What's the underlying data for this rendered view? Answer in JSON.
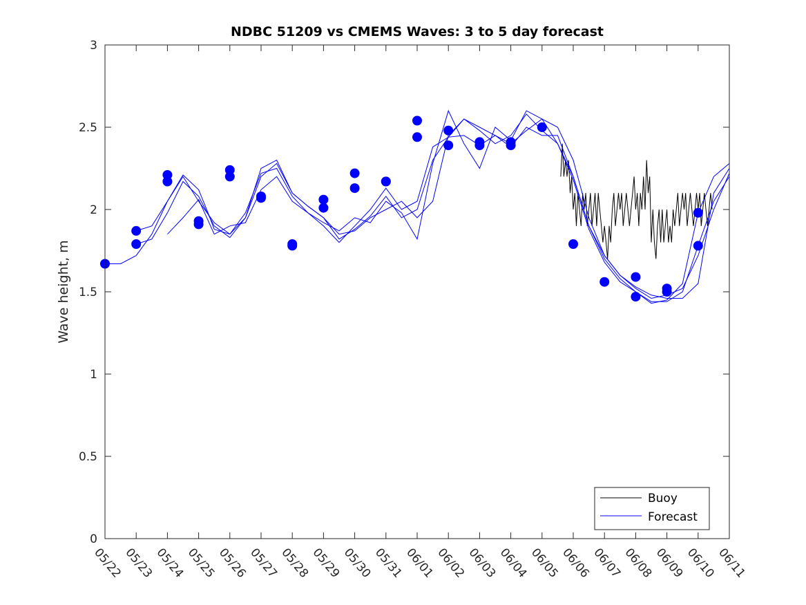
{
  "chart_data": {
    "type": "line",
    "title": "NDBC 51209 vs CMEMS Waves: 3 to 5 day forecast",
    "xlabel": "",
    "ylabel": "Wave height, m",
    "ylim": [
      0,
      3
    ],
    "yticks": [
      "0",
      "0.5",
      "1",
      "1.5",
      "2",
      "2.5",
      "3"
    ],
    "xlim": [
      "2024-05-22",
      "2024-06-11"
    ],
    "xtick_labels": [
      "05/22",
      "05/23",
      "05/24",
      "05/25",
      "05/26",
      "05/27",
      "05/28",
      "05/29",
      "05/30",
      "05/31",
      "06/01",
      "06/02",
      "06/03",
      "06/04",
      "06/05",
      "06/06",
      "06/07",
      "06/08",
      "06/09",
      "06/10",
      "06/11"
    ],
    "grid": false,
    "legend": {
      "placement": "bottom-right",
      "entries": [
        "Buoy",
        "Forecast"
      ]
    },
    "colors": {
      "buoy": "#000000",
      "forecast": "#0000ff"
    },
    "series": [
      {
        "name": "Buoy",
        "x": [
          14.6,
          14.65,
          14.7,
          14.75,
          14.8,
          14.85,
          14.9,
          14.95,
          15.0,
          15.05,
          15.1,
          15.15,
          15.2,
          15.25,
          15.3,
          15.35,
          15.4,
          15.45,
          15.5,
          15.55,
          15.6,
          15.65,
          15.7,
          15.75,
          15.8,
          15.85,
          15.9,
          15.95,
          16.0,
          16.05,
          16.1,
          16.15,
          16.2,
          16.25,
          16.3,
          16.35,
          16.4,
          16.45,
          16.5,
          16.55,
          16.6,
          16.65,
          16.7,
          16.75,
          16.8,
          16.85,
          16.9,
          16.95,
          17.0,
          17.05,
          17.1,
          17.15,
          17.2,
          17.25,
          17.3,
          17.35,
          17.4,
          17.45,
          17.5,
          17.55,
          17.6,
          17.65,
          17.7,
          17.75,
          17.8,
          17.85,
          17.9,
          17.95,
          18.0,
          18.05,
          18.1,
          18.15,
          18.2,
          18.25,
          18.3,
          18.35,
          18.4,
          18.45,
          18.5,
          18.55,
          18.6,
          18.65,
          18.7,
          18.75,
          18.8,
          18.85,
          18.9,
          18.95,
          19.0,
          19.05,
          19.1,
          19.15,
          19.2,
          19.25,
          19.3,
          19.35,
          19.4,
          19.45
        ],
        "values": [
          2.2,
          2.4,
          2.2,
          2.3,
          2.2,
          2.3,
          2.1,
          2.2,
          2.0,
          2.1,
          1.9,
          2.1,
          2.0,
          1.9,
          2.1,
          2.0,
          2.1,
          1.9,
          2.0,
          2.1,
          1.9,
          2.0,
          2.1,
          1.9,
          2.1,
          2.0,
          1.9,
          1.8,
          1.9,
          1.8,
          1.7,
          1.9,
          1.8,
          2.0,
          2.1,
          1.9,
          2.0,
          2.1,
          2.0,
          2.1,
          1.9,
          2.0,
          2.1,
          2.0,
          1.9,
          2.0,
          2.1,
          2.2,
          2.0,
          2.1,
          1.9,
          2.1,
          2.0,
          2.2,
          2.0,
          2.3,
          2.1,
          2.2,
          1.8,
          2.0,
          1.8,
          1.7,
          1.9,
          2.0,
          1.8,
          2.0,
          1.8,
          1.9,
          2.0,
          1.8,
          1.9,
          1.8,
          2.0,
          1.9,
          2.0,
          2.1,
          1.9,
          2.0,
          2.1,
          2.0,
          2.1,
          1.9,
          2.0,
          2.1,
          2.0,
          1.9,
          2.0,
          2.1,
          2.0,
          2.1,
          1.9,
          2.0,
          2.1,
          2.0,
          1.9,
          2.0,
          2.1,
          2.0
        ]
      },
      {
        "name": "Forecast",
        "x": [
          0.0,
          0.5,
          1.0,
          1.5,
          2.0,
          2.5,
          3.0,
          3.3,
          3.5,
          4.0,
          4.5,
          5.0,
          5.5,
          6.0,
          6.5,
          7.0,
          7.5,
          8.0,
          8.5,
          9.0,
          9.5,
          10.0,
          10.5,
          11.0,
          11.5,
          12.0,
          12.5,
          13.0,
          13.5,
          14.0,
          14.5,
          15.0,
          15.5,
          16.0,
          16.5,
          17.0,
          17.5,
          18.0,
          18.5,
          19.0,
          19.5,
          20.0
        ],
        "values": [
          1.67,
          1.67,
          1.72,
          1.85,
          2.05,
          2.21,
          2.12,
          1.98,
          1.88,
          1.85,
          1.95,
          2.25,
          2.3,
          2.1,
          2.02,
          1.95,
          1.85,
          1.87,
          1.95,
          2.0,
          2.05,
          1.95,
          2.05,
          2.45,
          2.55,
          2.5,
          2.45,
          2.4,
          2.48,
          2.55,
          2.5,
          2.3,
          1.95,
          1.72,
          1.6,
          1.53,
          1.48,
          1.46,
          1.46,
          1.55,
          2.1,
          2.25
        ]
      },
      {
        "name": "",
        "x": [
          1.0,
          1.5,
          2.0,
          2.5,
          3.0,
          3.5,
          4.0,
          4.5,
          5.0,
          5.5,
          6.0,
          6.5,
          7.0,
          7.5,
          8.0,
          8.5,
          9.0,
          9.5,
          10.0,
          10.5,
          11.0,
          11.5,
          12.0,
          12.5,
          13.0,
          13.5,
          14.0,
          14.5,
          15.0,
          15.5,
          16.0,
          16.5,
          17.0,
          17.5,
          18.0,
          18.5,
          19.0,
          19.5,
          20.0
        ],
        "values": [
          1.87,
          1.9,
          2.05,
          2.2,
          2.05,
          1.92,
          1.85,
          1.98,
          2.22,
          2.25,
          2.08,
          1.98,
          1.9,
          1.8,
          1.9,
          2.0,
          2.13,
          2.0,
          2.05,
          2.38,
          2.44,
          2.45,
          2.39,
          2.45,
          2.38,
          2.5,
          2.45,
          2.45,
          2.2,
          1.9,
          1.7,
          1.58,
          1.5,
          1.44,
          1.44,
          1.5,
          1.78,
          2.05,
          2.2
        ]
      },
      {
        "name": "",
        "x": [
          1.0,
          1.5,
          2.0,
          2.5,
          3.0,
          3.5,
          4.0,
          4.5,
          5.0,
          5.5,
          6.0,
          6.5,
          7.0,
          7.5,
          8.0,
          8.5,
          9.0,
          9.5,
          10.0,
          10.5,
          11.0,
          11.5,
          12.0,
          12.5,
          13.0,
          13.5,
          14.0,
          14.5,
          15.0,
          15.5,
          16.0,
          16.5,
          17.0,
          17.5,
          18.0,
          18.5,
          19.0,
          19.5,
          20.0
        ],
        "values": [
          1.79,
          1.82,
          1.98,
          2.17,
          2.08,
          1.9,
          1.83,
          1.95,
          2.2,
          2.28,
          2.1,
          2.02,
          1.95,
          1.82,
          1.88,
          1.96,
          2.08,
          1.95,
          2.0,
          2.3,
          2.44,
          2.55,
          2.48,
          2.4,
          2.45,
          2.58,
          2.48,
          2.4,
          2.2,
          1.9,
          1.72,
          1.6,
          1.52,
          1.46,
          1.48,
          1.52,
          1.72,
          2.0,
          2.22
        ]
      },
      {
        "name": "",
        "x": [
          2.0,
          2.5,
          3.0,
          3.5,
          4.0,
          4.5,
          5.0,
          5.5,
          6.0,
          6.5,
          7.0,
          7.5,
          8.0,
          8.5,
          9.0,
          9.5,
          10.0,
          10.5,
          11.0,
          11.5,
          12.0,
          12.5,
          13.0,
          13.5,
          14.0,
          14.5,
          15.0,
          15.5,
          16.0,
          16.5,
          17.0,
          17.5,
          18.0,
          18.5,
          19.0,
          19.5,
          20.0
        ],
        "values": [
          1.85,
          1.95,
          2.06,
          1.85,
          1.9,
          1.92,
          2.12,
          2.2,
          2.05,
          1.98,
          1.92,
          1.87,
          1.95,
          1.92,
          2.05,
          1.98,
          1.82,
          2.28,
          2.6,
          2.4,
          2.25,
          2.5,
          2.42,
          2.6,
          2.55,
          2.4,
          2.18,
          1.88,
          1.68,
          1.56,
          1.5,
          1.43,
          1.45,
          1.55,
          1.98,
          2.2,
          2.28
        ]
      }
    ],
    "markers": {
      "x": [
        0.0,
        1.0,
        1.0,
        2.0,
        2.0,
        3.0,
        3.0,
        4.0,
        4.0,
        5.0,
        5.0,
        6.0,
        6.0,
        7.0,
        7.0,
        8.0,
        8.0,
        9.0,
        9.0,
        10.0,
        10.0,
        11.0,
        11.0,
        12.0,
        12.0,
        13.0,
        13.0,
        14.0,
        15.0,
        16.0,
        17.0,
        17.0,
        18.0,
        18.0,
        19.0,
        19.0
      ],
      "values": [
        1.67,
        1.87,
        1.79,
        2.21,
        2.17,
        1.93,
        1.91,
        2.24,
        2.2,
        2.08,
        2.07,
        1.79,
        1.78,
        2.06,
        2.01,
        2.22,
        2.13,
        2.17,
        2.17,
        2.54,
        2.44,
        2.48,
        2.39,
        2.41,
        2.39,
        2.41,
        2.39,
        2.5,
        1.79,
        1.56,
        1.59,
        1.47,
        1.52,
        1.5,
        1.98,
        1.78
      ]
    }
  }
}
